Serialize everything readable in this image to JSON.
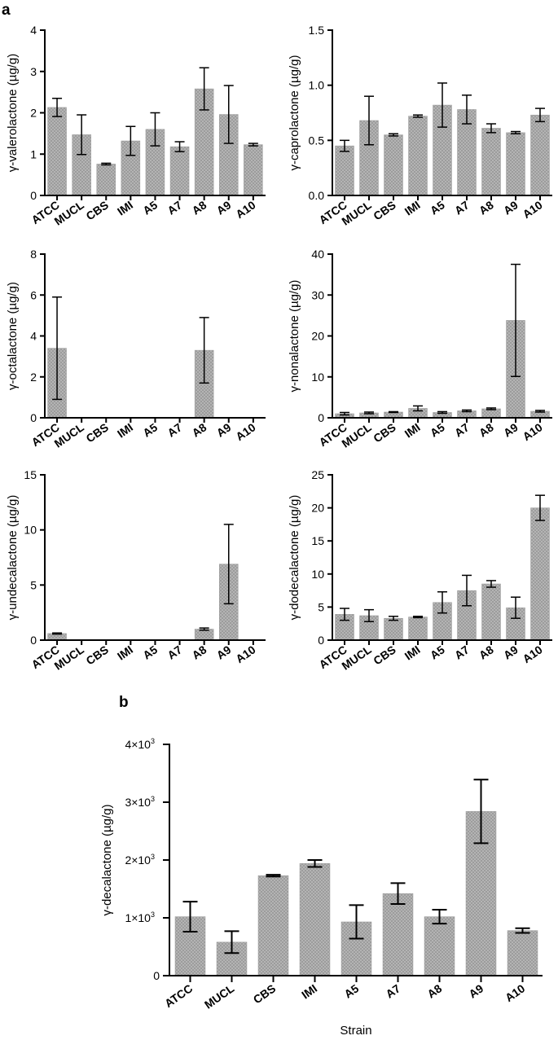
{
  "panel_labels": {
    "a": "a",
    "b": "b"
  },
  "chart_data": [
    {
      "type": "bar",
      "title": "",
      "xlabel": "",
      "ylabel": "γ-valerolactone (µg/g)",
      "categories": [
        "ATCC",
        "MUCL",
        "CBS",
        "IMI",
        "A5",
        "A7",
        "A8",
        "A9",
        "A10"
      ],
      "values": [
        2.13,
        1.47,
        0.76,
        1.32,
        1.6,
        1.18,
        2.58,
        1.96,
        1.23
      ],
      "errors": [
        0.22,
        0.48,
        0.02,
        0.35,
        0.4,
        0.12,
        0.51,
        0.7,
        0.03
      ],
      "ylim": [
        0,
        4
      ],
      "yticks": [
        0,
        1,
        2,
        3,
        4
      ],
      "yticklabels": [
        "0",
        "1",
        "2",
        "3",
        "4"
      ]
    },
    {
      "type": "bar",
      "title": "",
      "xlabel": "",
      "ylabel": "γ-caprolactone (µg/g)",
      "categories": [
        "ATCC",
        "MUCL",
        "CBS",
        "IMI",
        "A5",
        "A7",
        "A8",
        "A9",
        "A10"
      ],
      "values": [
        0.45,
        0.68,
        0.55,
        0.72,
        0.82,
        0.78,
        0.61,
        0.57,
        0.73
      ],
      "errors": [
        0.05,
        0.22,
        0.01,
        0.01,
        0.2,
        0.13,
        0.04,
        0.01,
        0.06
      ],
      "ylim": [
        0,
        1.5
      ],
      "yticks": [
        0,
        0.5,
        1.0,
        1.5
      ],
      "yticklabels": [
        "0.0",
        "0.5",
        "1.0",
        "1.5"
      ]
    },
    {
      "type": "bar",
      "title": "",
      "xlabel": "",
      "ylabel": "γ-octalactone (µg/g)",
      "categories": [
        "ATCC",
        "MUCL",
        "CBS",
        "IMI",
        "A5",
        "A7",
        "A8",
        "A9",
        "A10"
      ],
      "values": [
        3.4,
        0,
        0,
        0,
        0,
        0,
        3.3,
        0,
        0
      ],
      "errors": [
        2.5,
        0,
        0,
        0,
        0,
        0,
        1.6,
        0,
        0
      ],
      "ylim": [
        0,
        8
      ],
      "yticks": [
        0,
        2,
        4,
        6,
        8
      ],
      "yticklabels": [
        "0",
        "2",
        "4",
        "6",
        "8"
      ]
    },
    {
      "type": "bar",
      "title": "",
      "xlabel": "",
      "ylabel": "γ-nonalactone (µg/g)",
      "categories": [
        "ATCC",
        "MUCL",
        "CBS",
        "IMI",
        "A5",
        "A7",
        "A8",
        "A9",
        "A10"
      ],
      "values": [
        1.0,
        1.2,
        1.4,
        2.3,
        1.3,
        1.7,
        2.2,
        23.8,
        1.6
      ],
      "errors": [
        0.3,
        0.2,
        0.1,
        0.6,
        0.2,
        0.2,
        0.2,
        13.7,
        0.2
      ],
      "ylim": [
        0,
        40
      ],
      "yticks": [
        0,
        10,
        20,
        30,
        40
      ],
      "yticklabels": [
        "0",
        "10",
        "20",
        "30",
        "40"
      ]
    },
    {
      "type": "bar",
      "title": "",
      "xlabel": "",
      "ylabel": "γ-undecalactone (µg/g)",
      "categories": [
        "ATCC",
        "MUCL",
        "CBS",
        "IMI",
        "A5",
        "A7",
        "A8",
        "A9",
        "A10"
      ],
      "values": [
        0.6,
        0,
        0,
        0,
        0,
        0,
        1.0,
        6.9,
        0
      ],
      "errors": [
        0.05,
        0,
        0,
        0,
        0,
        0,
        0.1,
        3.6,
        0
      ],
      "ylim": [
        0,
        15
      ],
      "yticks": [
        0,
        5,
        10,
        15
      ],
      "yticklabels": [
        "0",
        "5",
        "10",
        "15"
      ]
    },
    {
      "type": "bar",
      "title": "",
      "xlabel": "",
      "ylabel": "γ-dodecalactone (µg/g)",
      "categories": [
        "ATCC",
        "MUCL",
        "CBS",
        "IMI",
        "A5",
        "A7",
        "A8",
        "A9",
        "A10"
      ],
      "values": [
        3.9,
        3.7,
        3.3,
        3.5,
        5.7,
        7.5,
        8.5,
        4.9,
        20.0
      ],
      "errors": [
        0.9,
        0.9,
        0.3,
        0.1,
        1.6,
        2.3,
        0.5,
        1.6,
        1.9
      ],
      "ylim": [
        0,
        25
      ],
      "yticks": [
        0,
        5,
        10,
        15,
        20,
        25
      ],
      "yticklabels": [
        "0",
        "5",
        "10",
        "15",
        "20",
        "25"
      ]
    },
    {
      "type": "bar",
      "title": "",
      "xlabel": "Strain",
      "ylabel": "γ-decalactone (µg/g)",
      "categories": [
        "ATCC",
        "MUCL",
        "CBS",
        "IMI",
        "A5",
        "A7",
        "A8",
        "A9",
        "A10"
      ],
      "values": [
        1020,
        580,
        1730,
        1940,
        930,
        1420,
        1020,
        2840,
        780
      ],
      "errors": [
        260,
        190,
        15,
        60,
        290,
        180,
        120,
        550,
        40
      ],
      "ylim": [
        0,
        4000
      ],
      "yticks": [
        0,
        1000,
        2000,
        3000,
        4000
      ],
      "yticklabels": [
        "0",
        "1×10",
        "2×10",
        "3×10",
        "4×10"
      ],
      "ytickexp": [
        "",
        "3",
        "3",
        "3",
        "3"
      ]
    }
  ]
}
